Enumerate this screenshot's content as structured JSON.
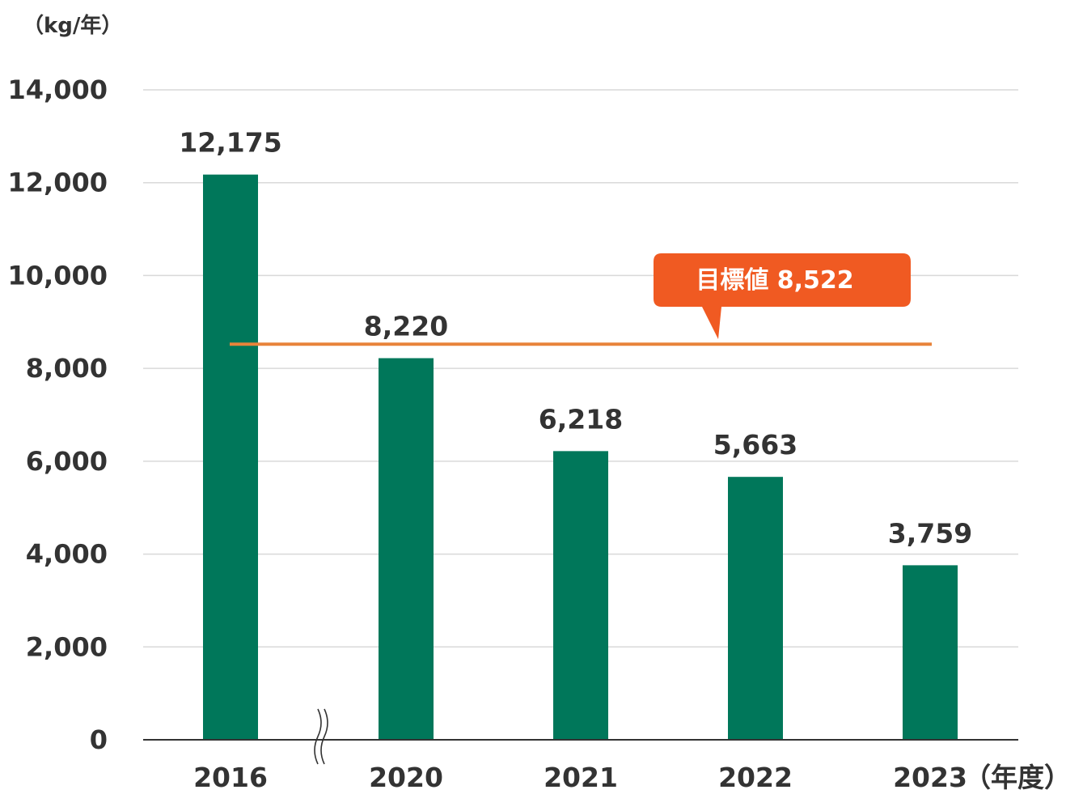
{
  "chart_data": {
    "type": "bar",
    "ylabel": "（kg/年）",
    "xlabel": "（年度）",
    "categories": [
      "2016",
      "2020",
      "2021",
      "2022",
      "2023"
    ],
    "values": [
      12175,
      8220,
      6218,
      5663,
      3759
    ],
    "value_labels": [
      "12,175",
      "8,220",
      "6,218",
      "5,663",
      "3,759"
    ],
    "ylim": [
      0,
      14000
    ],
    "yticks": [
      {
        "value": 0,
        "label": "0"
      },
      {
        "value": 2000,
        "label": "2,000"
      },
      {
        "value": 4000,
        "label": "4,000"
      },
      {
        "value": 6000,
        "label": "6,000"
      },
      {
        "value": 8000,
        "label": "8,000"
      },
      {
        "value": 10000,
        "label": "10,000"
      },
      {
        "value": 12000,
        "label": "12,000"
      },
      {
        "value": 14000,
        "label": "14,000"
      }
    ],
    "grid": true,
    "axis_break_between": [
      "2016",
      "2020"
    ],
    "target": {
      "value": 8522,
      "label": "目標値 8,522"
    },
    "colors": {
      "bar": "#00775a",
      "target_line": "#e8833a",
      "callout": "#f05a22",
      "grid": "#d9d9d9",
      "axis": "#333333"
    }
  }
}
